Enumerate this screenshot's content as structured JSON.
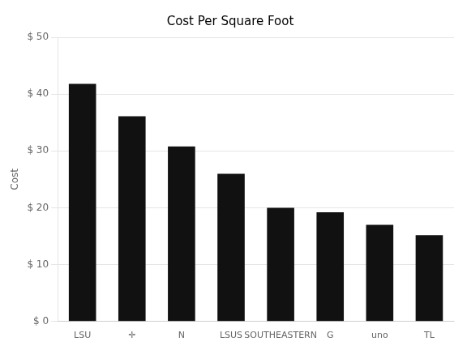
{
  "chart_data": {
    "type": "bar",
    "title": "Cost Per Square Foot",
    "ylabel": "Cost",
    "categories": [
      "LSU",
      "✛",
      "N",
      "LSUS",
      "SOUTHEASTERN",
      "G",
      "uno",
      "TL"
    ],
    "values": [
      41.8,
      36.1,
      30.8,
      26.0,
      20.0,
      19.2,
      17.0,
      15.2
    ],
    "color": "#111111",
    "ylim": [
      0,
      50
    ],
    "yticks": [
      {
        "value": 0,
        "label": "$ 0"
      },
      {
        "value": 10,
        "label": "$ 10"
      },
      {
        "value": 20,
        "label": "$ 20"
      },
      {
        "value": 30,
        "label": "$ 30"
      },
      {
        "value": 40,
        "label": "$ 40"
      },
      {
        "value": 50,
        "label": "$ 50"
      }
    ],
    "grid": true
  }
}
